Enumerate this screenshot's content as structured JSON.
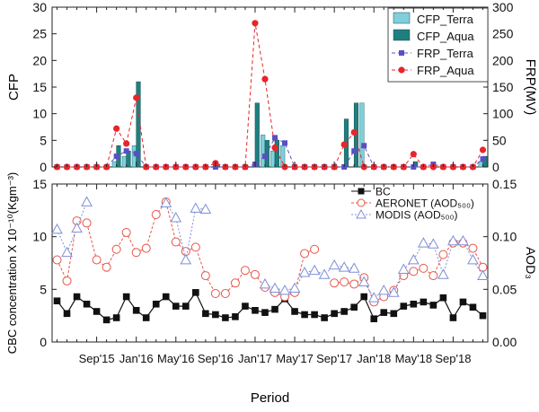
{
  "x_axis": {
    "label": "Period",
    "ticks": [
      "Sep'15",
      "Jan'16",
      "May'16",
      "Sep'16",
      "Jan'17",
      "May'17",
      "Sep'17",
      "Jan'18",
      "May'18",
      "Sep'18"
    ]
  },
  "chart_data": [
    {
      "type": "bar",
      "x": [
        "2015-05",
        "2015-06",
        "2015-07",
        "2015-08",
        "2015-09",
        "2015-10",
        "2015-11",
        "2015-12",
        "2016-01",
        "2016-02",
        "2016-03",
        "2016-04",
        "2016-05",
        "2016-06",
        "2016-07",
        "2016-08",
        "2016-09",
        "2016-10",
        "2016-11",
        "2016-12",
        "2017-01",
        "2017-02",
        "2017-03",
        "2017-04",
        "2017-05",
        "2017-06",
        "2017-07",
        "2017-08",
        "2017-09",
        "2017-10",
        "2017-11",
        "2017-12",
        "2018-01",
        "2018-02",
        "2018-03",
        "2018-04",
        "2018-05",
        "2018-06",
        "2018-07",
        "2018-08",
        "2018-09",
        "2018-10",
        "2018-11",
        "2018-12"
      ],
      "ylabel": "CFP",
      "ylim": [
        0,
        30
      ],
      "yticks": [
        0,
        5,
        10,
        15,
        20,
        25,
        30
      ],
      "y2label": "FRP(MV)",
      "y2lim": [
        0,
        300
      ],
      "y2ticks": [
        0,
        50,
        100,
        150,
        200,
        250,
        300
      ],
      "legend": "top-right",
      "series": [
        {
          "name": "CFP_Terra",
          "kind": "bar",
          "color": "#7fd0dc",
          "values": [
            0,
            0,
            0,
            0,
            0,
            0,
            1,
            2,
            4,
            0,
            0,
            0,
            0,
            0,
            0,
            0,
            0,
            0,
            0,
            0,
            0,
            6,
            3,
            4,
            0,
            0,
            0,
            0,
            0,
            0,
            0,
            12,
            0,
            0,
            0,
            0,
            0,
            0,
            0,
            0,
            0,
            0,
            0,
            1
          ]
        },
        {
          "name": "CFP_Aqua",
          "kind": "bar",
          "color": "#1f7f7f",
          "values": [
            0,
            0,
            0,
            0,
            0,
            0,
            4,
            3,
            16,
            0,
            0,
            0,
            0,
            0,
            0,
            0,
            0.5,
            0,
            0,
            0,
            12,
            5,
            5,
            0,
            0,
            0,
            0,
            0,
            0,
            9,
            12,
            0,
            0,
            0,
            0,
            0,
            1,
            0,
            0,
            0,
            0,
            0,
            0,
            2
          ]
        },
        {
          "name": "FRP_Terra",
          "kind": "line-y2",
          "color": "#5a4fc4",
          "values": [
            0,
            0,
            0,
            0,
            0,
            0,
            20,
            30,
            25,
            0,
            0,
            0,
            0,
            0,
            0,
            0,
            0,
            0,
            0,
            0,
            5,
            20,
            55,
            45,
            0,
            0,
            0,
            0,
            0,
            0,
            30,
            40,
            0,
            0,
            0,
            0,
            0,
            0,
            5,
            0,
            0,
            0,
            0,
            15
          ]
        },
        {
          "name": "FRP_Aqua",
          "kind": "line-y2",
          "color": "#e8252a",
          "values": [
            0,
            0,
            0,
            0,
            0,
            0,
            72,
            44,
            130,
            0,
            0,
            0,
            0,
            0,
            0,
            0,
            7,
            0,
            0,
            0,
            270,
            165,
            36,
            0,
            0,
            0,
            0,
            0,
            0,
            42,
            65,
            0,
            0,
            0,
            0,
            0,
            24,
            0,
            0,
            0,
            0,
            0,
            0,
            32
          ]
        }
      ]
    },
    {
      "type": "line",
      "x": [
        "2015-05",
        "2015-06",
        "2015-07",
        "2015-08",
        "2015-09",
        "2015-10",
        "2015-11",
        "2015-12",
        "2016-01",
        "2016-02",
        "2016-03",
        "2016-04",
        "2016-05",
        "2016-06",
        "2016-07",
        "2016-08",
        "2016-09",
        "2016-10",
        "2016-11",
        "2016-12",
        "2017-01",
        "2017-02",
        "2017-03",
        "2017-04",
        "2017-05",
        "2017-06",
        "2017-07",
        "2017-08",
        "2017-09",
        "2017-10",
        "2017-11",
        "2017-12",
        "2018-01",
        "2018-02",
        "2018-03",
        "2018-04",
        "2018-05",
        "2018-06",
        "2018-07",
        "2018-08",
        "2018-09",
        "2018-10",
        "2018-11",
        "2018-12"
      ],
      "ylabel": "CBC concentration X 10⁻¹⁰(Kgm⁻³)",
      "ylim": [
        0,
        15
      ],
      "yticks": [
        0,
        5,
        10,
        15
      ],
      "y2label": "AOD₃",
      "y2lim": [
        0,
        0.15
      ],
      "y2ticks": [
        "0.00",
        "0.05",
        "0.10",
        "0.15"
      ],
      "legend": "top-right",
      "series": [
        {
          "name": "BC",
          "axis": "left",
          "color": "#111111",
          "marker": "square",
          "values": [
            3.9,
            2.7,
            4.3,
            3.6,
            2.9,
            2.1,
            2.3,
            4.3,
            3.0,
            2.3,
            3.6,
            4.3,
            3.4,
            3.4,
            4.7,
            2.7,
            2.6,
            2.3,
            2.4,
            3.4,
            3.0,
            2.8,
            3.1,
            4.1,
            2.9,
            2.6,
            2.6,
            2.3,
            2.7,
            2.9,
            3.3,
            4.3,
            2.2,
            2.8,
            2.7,
            3.4,
            3.6,
            3.8,
            3.5,
            4.2,
            2.3,
            3.8,
            3.3,
            2.5
          ]
        },
        {
          "name": "AERONET (AOD₅₀₀)",
          "axis": "right",
          "color": "#e8554a",
          "marker": "circle",
          "values": [
            0.078,
            0.058,
            0.115,
            0.113,
            0.078,
            0.071,
            0.088,
            0.104,
            0.085,
            0.089,
            0.121,
            0.133,
            0.095,
            0.086,
            0.09,
            0.063,
            0.046,
            0.046,
            0.056,
            0.068,
            0.064,
            0.052,
            0.047,
            0.043,
            0.047,
            0.084,
            0.088,
            null,
            0.056,
            0.057,
            0.055,
            0.061,
            0.038,
            0.043,
            0.049,
            0.063,
            0.067,
            0.07,
            0.063,
            0.083,
            0.094,
            0.094,
            0.089,
            0.071
          ]
        },
        {
          "name": "MODIS (AOD₅₀₀)",
          "axis": "right",
          "color": "#7f8fd6",
          "marker": "triangle",
          "values": [
            0.107,
            0.085,
            0.108,
            0.133,
            null,
            null,
            null,
            null,
            null,
            null,
            null,
            0.132,
            0.118,
            0.078,
            0.127,
            0.126,
            null,
            null,
            null,
            null,
            null,
            0.055,
            0.051,
            0.049,
            0.051,
            0.066,
            0.068,
            0.064,
            0.073,
            0.071,
            0.07,
            0.057,
            0.042,
            0.049,
            0.047,
            0.069,
            0.078,
            0.094,
            0.093,
            0.064,
            0.096,
            0.096,
            0.078,
            0.063
          ]
        }
      ]
    }
  ]
}
